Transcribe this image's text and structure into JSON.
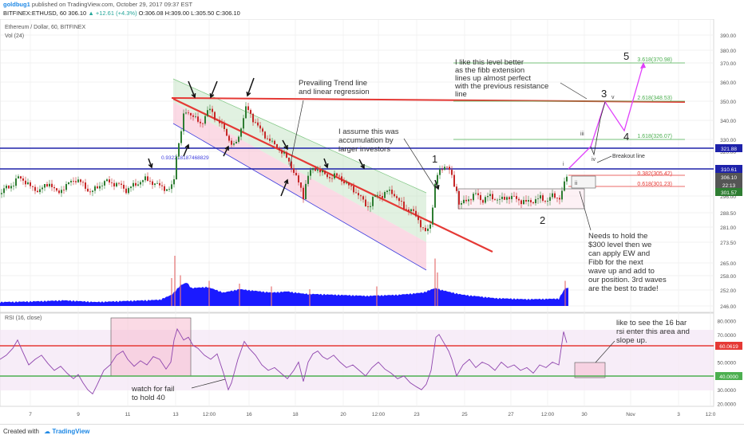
{
  "header": {
    "author": "goldbug1",
    "published_text": "published on TradingView.com, October 29, 2017 09:37 EST",
    "symbol": "BITFINEX:ETHUSD, 60",
    "last": "306.10",
    "change": "+12.61 (+4.3%)",
    "ohlc": "O:306.08 H:309.00 L:305.50 C:306.10"
  },
  "legend": {
    "main_title": "Ethereum / Dollar, 60, BITFINEX",
    "vol_label": "Vol (24)",
    "rsi_label": "RSI (16, close)"
  },
  "colors": {
    "red_line": "#e53935",
    "blue_line": "#1e22aa",
    "green_fib": "#4caf50",
    "magenta_path": "#e040fb",
    "volume": "#1a1aff",
    "rsi_line": "#8e44ad",
    "candle_up": "#2e7d32",
    "candle_down": "#c62828"
  },
  "price_axis": {
    "ticks": [
      "390.00",
      "380.00",
      "370.00",
      "360.00",
      "350.00",
      "340.00",
      "330.00",
      "320.00",
      "296.00",
      "288.50",
      "281.00",
      "273.50",
      "265.00",
      "258.00",
      "252.00",
      "246.00"
    ],
    "tags": [
      {
        "label": "321.88",
        "color": "#1e22aa"
      },
      {
        "label": "310.61",
        "color": "#1e22aa"
      },
      {
        "label": "306.10",
        "color": "#555555"
      },
      {
        "label": "22:13",
        "color": "#555555"
      },
      {
        "label": "301.57",
        "color": "#2e7d32"
      }
    ]
  },
  "rsi_axis": {
    "ticks": [
      "80.0000",
      "70.0000",
      "50.0000",
      "30.0000",
      "20.0000"
    ],
    "tags": [
      {
        "label": "60.0619",
        "color": "#e53935"
      },
      {
        "label": "40.0000",
        "color": "#4caf50"
      }
    ]
  },
  "time_axis": [
    "7",
    "9",
    "11",
    "13",
    "12:00",
    "16",
    "18",
    "20",
    "12:00",
    "23",
    "25",
    "27",
    "12:00",
    "30",
    "Nov",
    "3",
    "12:0"
  ],
  "fib_levels": [
    {
      "label": "3.618(370.98)",
      "color": "#4caf50"
    },
    {
      "label": "2.618(348.53)",
      "color": "#4caf50"
    },
    {
      "label": "1.618(326.07)",
      "color": "#4caf50"
    },
    {
      "label": "0.382(305.42)",
      "color": "#e53935"
    },
    {
      "label": "0.618(301.23)",
      "color": "#e53935"
    }
  ],
  "annotations": {
    "trend_note": [
      "Prevailing Trend line",
      "and linear regression"
    ],
    "accum_note": [
      "I assume this was",
      "accumulation by",
      "larger investors"
    ],
    "fib_note": [
      "I like this level better",
      "as the fibb extension",
      "lines up almost perfect",
      "with the previous resistance",
      "line"
    ],
    "hold_note": [
      "Needs to hold the",
      "$300 level then we",
      "can apply EW and",
      "Fibb for the next",
      "wave up and add to",
      "our position. 3rd waves",
      "are the best to trade!"
    ],
    "rsi_note": [
      "like to see the 16 bar",
      "rsi enter this area and",
      "slope up."
    ],
    "rsi_fail_note": [
      "watch for fail",
      "to hold 40"
    ],
    "breakout": "Breakout line",
    "regression_value": "0.932218187468829",
    "wave_labels": [
      "1",
      "2",
      "3",
      "4",
      "5"
    ],
    "sub_labels": [
      "i",
      "ii",
      "iii",
      "iv",
      "v"
    ]
  },
  "footer": {
    "created_with": "Created with",
    "brand": "TradingView"
  },
  "chart_data": {
    "type": "candlestick",
    "title": "Ethereum / Dollar, 60, BITFINEX",
    "ylim": [
      244,
      393
    ],
    "rsi_ylim": [
      18,
      82
    ],
    "price_path": [
      [
        0,
        297
      ],
      [
        6,
        300
      ],
      [
        12,
        301
      ],
      [
        18,
        303
      ],
      [
        22,
        306
      ],
      [
        28,
        305
      ],
      [
        34,
        303
      ],
      [
        40,
        300
      ],
      [
        48,
        299
      ],
      [
        56,
        301
      ],
      [
        62,
        303
      ],
      [
        66,
        301
      ],
      [
        72,
        297
      ],
      [
        78,
        300
      ],
      [
        84,
        302
      ],
      [
        90,
        304
      ],
      [
        96,
        305
      ],
      [
        102,
        303
      ],
      [
        108,
        300
      ],
      [
        114,
        298
      ],
      [
        120,
        300
      ],
      [
        126,
        302
      ],
      [
        132,
        304
      ],
      [
        140,
        303
      ],
      [
        150,
        302
      ],
      [
        158,
        299
      ],
      [
        164,
        301
      ],
      [
        170,
        302
      ],
      [
        176,
        304
      ],
      [
        182,
        305
      ],
      [
        188,
        304
      ],
      [
        196,
        302
      ],
      [
        204,
        301
      ],
      [
        210,
        299
      ],
      [
        214,
        300
      ],
      [
        218,
        305
      ],
      [
        220,
        315
      ],
      [
        222,
        322
      ],
      [
        226,
        332
      ],
      [
        230,
        342
      ],
      [
        234,
        345
      ],
      [
        240,
        343
      ],
      [
        246,
        340
      ],
      [
        252,
        338
      ],
      [
        258,
        343
      ],
      [
        262,
        346
      ],
      [
        266,
        344
      ],
      [
        270,
        341
      ],
      [
        276,
        338
      ],
      [
        280,
        336
      ],
      [
        284,
        333
      ],
      [
        288,
        328
      ],
      [
        292,
        324
      ],
      [
        298,
        330
      ],
      [
        304,
        340
      ],
      [
        308,
        346
      ],
      [
        312,
        345
      ],
      [
        316,
        341
      ],
      [
        320,
        339
      ],
      [
        324,
        336
      ],
      [
        330,
        333
      ],
      [
        336,
        330
      ],
      [
        342,
        327
      ],
      [
        348,
        323
      ],
      [
        352,
        320
      ],
      [
        356,
        318
      ],
      [
        360,
        316
      ],
      [
        364,
        313
      ],
      [
        368,
        309
      ],
      [
        372,
        305
      ],
      [
        376,
        301
      ],
      [
        380,
        296
      ],
      [
        384,
        305
      ],
      [
        390,
        310
      ],
      [
        396,
        311
      ],
      [
        402,
        309
      ],
      [
        408,
        307
      ],
      [
        414,
        306
      ],
      [
        420,
        307
      ],
      [
        426,
        306
      ],
      [
        432,
        303
      ],
      [
        438,
        301
      ],
      [
        444,
        299
      ],
      [
        450,
        296
      ],
      [
        456,
        293
      ],
      [
        462,
        291
      ],
      [
        468,
        295
      ],
      [
        474,
        297
      ],
      [
        480,
        296
      ],
      [
        486,
        299
      ],
      [
        492,
        298
      ],
      [
        498,
        294
      ],
      [
        504,
        292
      ],
      [
        510,
        290
      ],
      [
        516,
        289
      ],
      [
        522,
        287
      ],
      [
        528,
        281
      ],
      [
        532,
        278
      ],
      [
        536,
        280
      ],
      [
        540,
        284
      ],
      [
        544,
        300
      ],
      [
        548,
        307
      ],
      [
        552,
        310
      ],
      [
        558,
        313
      ],
      [
        564,
        309
      ],
      [
        568,
        303
      ],
      [
        572,
        299
      ],
      [
        576,
        291
      ],
      [
        580,
        293
      ],
      [
        588,
        295
      ],
      [
        596,
        297
      ],
      [
        604,
        294
      ],
      [
        612,
        296
      ],
      [
        620,
        295
      ],
      [
        628,
        294
      ],
      [
        636,
        296
      ],
      [
        644,
        295
      ],
      [
        652,
        294
      ],
      [
        660,
        293
      ],
      [
        668,
        294
      ],
      [
        676,
        295
      ],
      [
        684,
        294
      ],
      [
        692,
        296
      ],
      [
        700,
        295
      ],
      [
        706,
        300
      ],
      [
        708,
        306
      ]
    ],
    "volume": [
      [
        0,
        0.05
      ],
      [
        40,
        0.06
      ],
      [
        80,
        0.08
      ],
      [
        120,
        0.05
      ],
      [
        160,
        0.07
      ],
      [
        200,
        0.09
      ],
      [
        215,
        0.18
      ],
      [
        226,
        0.35
      ],
      [
        234,
        0.4
      ],
      [
        240,
        0.3
      ],
      [
        260,
        0.32
      ],
      [
        280,
        0.22
      ],
      [
        300,
        0.28
      ],
      [
        320,
        0.25
      ],
      [
        340,
        0.22
      ],
      [
        360,
        0.24
      ],
      [
        380,
        0.2
      ],
      [
        420,
        0.18
      ],
      [
        460,
        0.16
      ],
      [
        500,
        0.18
      ],
      [
        530,
        0.22
      ],
      [
        545,
        0.3
      ],
      [
        560,
        0.24
      ],
      [
        580,
        0.18
      ],
      [
        620,
        0.12
      ],
      [
        660,
        0.1
      ],
      [
        700,
        0.11
      ],
      [
        708,
        0.3
      ]
    ],
    "rsi": [
      [
        0,
        52
      ],
      [
        8,
        55
      ],
      [
        16,
        60
      ],
      [
        22,
        66
      ],
      [
        28,
        58
      ],
      [
        36,
        48
      ],
      [
        44,
        52
      ],
      [
        52,
        55
      ],
      [
        60,
        49
      ],
      [
        68,
        44
      ],
      [
        76,
        47
      ],
      [
        84,
        42
      ],
      [
        92,
        38
      ],
      [
        98,
        41
      ],
      [
        104,
        35
      ],
      [
        110,
        30
      ],
      [
        116,
        27
      ],
      [
        122,
        34
      ],
      [
        130,
        44
      ],
      [
        138,
        48
      ],
      [
        146,
        55
      ],
      [
        154,
        58
      ],
      [
        160,
        52
      ],
      [
        168,
        47
      ],
      [
        176,
        51
      ],
      [
        184,
        48
      ],
      [
        192,
        54
      ],
      [
        200,
        52
      ],
      [
        208,
        45
      ],
      [
        214,
        50
      ],
      [
        218,
        66
      ],
      [
        222,
        74
      ],
      [
        226,
        70
      ],
      [
        230,
        66
      ],
      [
        236,
        68
      ],
      [
        242,
        62
      ],
      [
        248,
        60
      ],
      [
        256,
        55
      ],
      [
        264,
        52
      ],
      [
        272,
        56
      ],
      [
        280,
        42
      ],
      [
        286,
        30
      ],
      [
        290,
        35
      ],
      [
        298,
        52
      ],
      [
        306,
        65
      ],
      [
        312,
        60
      ],
      [
        320,
        55
      ],
      [
        328,
        48
      ],
      [
        336,
        44
      ],
      [
        344,
        46
      ],
      [
        352,
        42
      ],
      [
        360,
        38
      ],
      [
        368,
        44
      ],
      [
        374,
        50
      ],
      [
        380,
        36
      ],
      [
        386,
        50
      ],
      [
        392,
        56
      ],
      [
        398,
        58
      ],
      [
        404,
        54
      ],
      [
        410,
        52
      ],
      [
        418,
        55
      ],
      [
        426,
        50
      ],
      [
        434,
        46
      ],
      [
        442,
        48
      ],
      [
        450,
        44
      ],
      [
        458,
        40
      ],
      [
        466,
        46
      ],
      [
        474,
        50
      ],
      [
        482,
        45
      ],
      [
        490,
        42
      ],
      [
        498,
        38
      ],
      [
        506,
        40
      ],
      [
        514,
        35
      ],
      [
        522,
        32
      ],
      [
        528,
        30
      ],
      [
        534,
        34
      ],
      [
        540,
        44
      ],
      [
        546,
        68
      ],
      [
        550,
        70
      ],
      [
        556,
        64
      ],
      [
        562,
        58
      ],
      [
        566,
        52
      ],
      [
        572,
        40
      ],
      [
        580,
        48
      ],
      [
        588,
        52
      ],
      [
        596,
        46
      ],
      [
        604,
        50
      ],
      [
        612,
        48
      ],
      [
        620,
        44
      ],
      [
        628,
        50
      ],
      [
        636,
        46
      ],
      [
        644,
        48
      ],
      [
        652,
        44
      ],
      [
        660,
        46
      ],
      [
        668,
        42
      ],
      [
        676,
        48
      ],
      [
        684,
        46
      ],
      [
        692,
        50
      ],
      [
        700,
        48
      ],
      [
        706,
        72
      ],
      [
        710,
        64
      ]
    ]
  }
}
